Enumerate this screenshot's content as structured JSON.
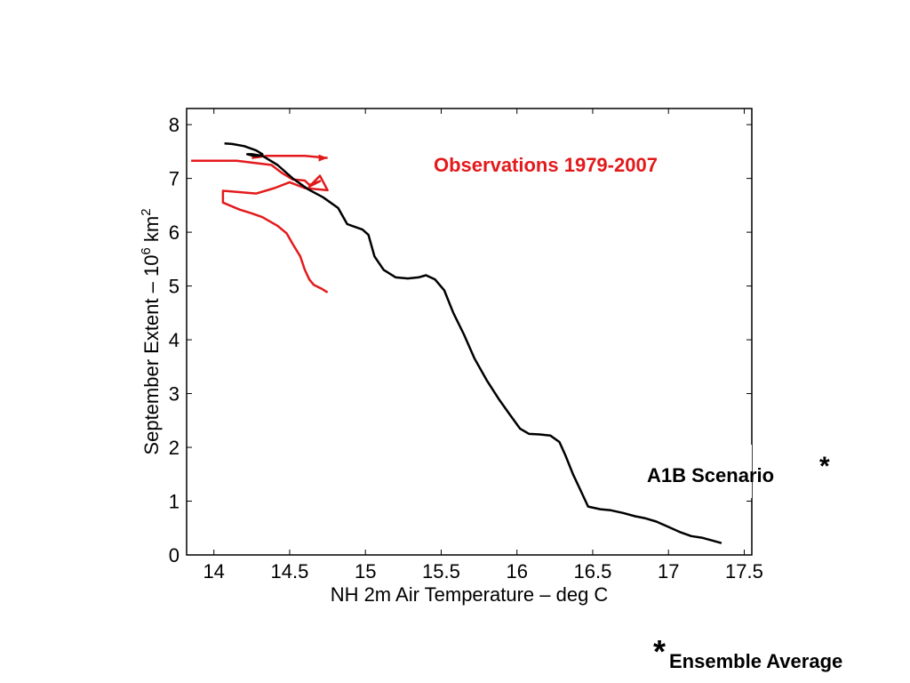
{
  "chart_data": {
    "type": "line",
    "xlabel": "NH 2m Air Temperature – deg C",
    "ylabel": "September Extent – 10^6 km^2",
    "ylabel_parts": {
      "pre": "September Extent – 10",
      "exp1": "6",
      "mid": " km",
      "exp2": "2"
    },
    "xlim": [
      13.82,
      17.55
    ],
    "ylim": [
      0,
      8.3
    ],
    "xticks": [
      "14",
      "14.5",
      "15",
      "15.5",
      "16",
      "16.5",
      "17",
      "17.5"
    ],
    "xtick_values": [
      14,
      14.5,
      15,
      15.5,
      16,
      16.5,
      17,
      17.5
    ],
    "yticks": [
      "0",
      "1",
      "2",
      "3",
      "4",
      "5",
      "6",
      "7",
      "8"
    ],
    "ytick_values": [
      0,
      1,
      2,
      3,
      4,
      5,
      6,
      7,
      8
    ],
    "grid": false,
    "series": [
      {
        "name": "Observations 1979-2007",
        "color": "#e31a1c",
        "x": [
          13.85,
          14.15,
          14.38,
          14.45,
          14.52,
          14.6,
          14.63,
          14.7,
          14.63,
          14.7,
          14.75,
          14.6,
          14.5,
          14.4,
          14.28,
          14.06,
          14.06,
          14.17,
          14.25,
          14.32,
          14.42,
          14.48,
          14.52,
          14.57,
          14.6,
          14.63,
          14.66,
          14.71,
          14.75
        ],
        "y": [
          7.33,
          7.33,
          7.25,
          7.1,
          6.98,
          6.96,
          6.88,
          6.95,
          6.85,
          7.05,
          6.78,
          6.82,
          6.93,
          6.82,
          6.72,
          6.77,
          6.55,
          6.42,
          6.35,
          6.28,
          6.12,
          5.98,
          5.78,
          5.55,
          5.3,
          5.12,
          5.02,
          4.95,
          4.88
        ],
        "extra_x": [
          14.25,
          14.35,
          14.6,
          14.75
        ],
        "extra_y": [
          7.38,
          7.42,
          7.42,
          7.38
        ]
      },
      {
        "name": "A1B Scenario",
        "color": "#000000",
        "x": [
          14.07,
          14.12,
          14.2,
          14.28,
          14.32,
          14.3,
          14.26,
          14.22,
          14.25,
          14.32,
          14.42,
          14.52,
          14.62,
          14.72,
          14.82,
          14.88,
          14.93,
          14.98,
          15.02,
          15.06,
          15.12,
          15.2,
          15.28,
          15.35,
          15.4,
          15.46,
          15.52,
          15.58,
          15.65,
          15.72,
          15.8,
          15.88,
          15.95,
          16.02,
          16.08,
          16.15,
          16.22,
          16.28,
          16.32,
          16.37,
          16.42,
          16.47,
          16.55,
          16.62,
          16.7,
          16.78,
          16.85,
          16.92,
          17.0,
          17.08,
          17.15,
          17.22,
          17.3,
          17.35
        ],
        "y": [
          7.65,
          7.64,
          7.6,
          7.52,
          7.45,
          7.42,
          7.42,
          7.45,
          7.45,
          7.42,
          7.25,
          7.0,
          6.8,
          6.65,
          6.45,
          6.15,
          6.1,
          6.05,
          5.95,
          5.55,
          5.3,
          5.16,
          5.14,
          5.16,
          5.2,
          5.12,
          4.92,
          4.5,
          4.1,
          3.65,
          3.25,
          2.9,
          2.62,
          2.35,
          2.25,
          2.24,
          2.22,
          2.1,
          1.85,
          1.5,
          1.2,
          0.9,
          0.85,
          0.83,
          0.78,
          0.72,
          0.68,
          0.62,
          0.52,
          0.42,
          0.35,
          0.32,
          0.26,
          0.22
        ]
      }
    ],
    "annotations": [
      "Observations 1979-2007",
      "A1B Scenario *",
      "*Ensemble Average"
    ]
  },
  "labels": {
    "observations": "Observations 1979-2007",
    "scenario": "A1B Scenario",
    "scenario_star": "*",
    "footnote_star": "*",
    "footnote_text": "Ensemble Average"
  }
}
